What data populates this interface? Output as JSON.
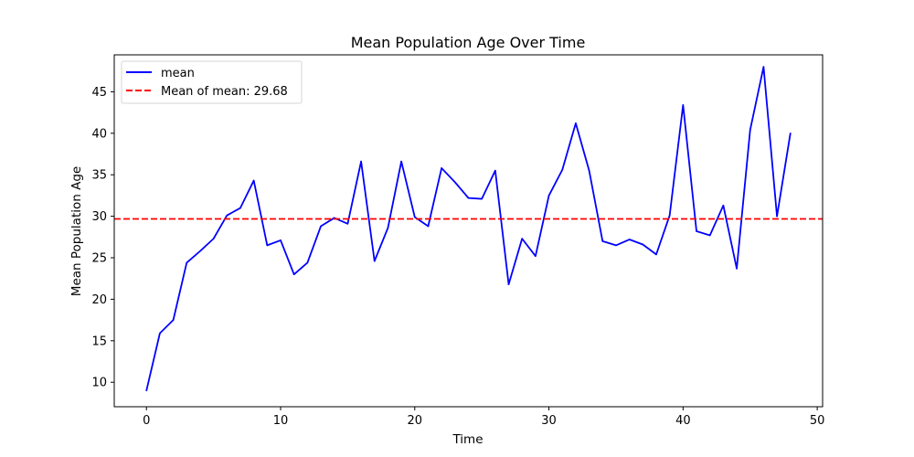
{
  "chart_data": {
    "type": "line",
    "title": "Mean Population Age Over Time",
    "xlabel": "Time",
    "ylabel": "Mean Population Age",
    "xlim": [
      -2.4,
      50.4
    ],
    "ylim": [
      7.05,
      49.45
    ],
    "x_ticks": [
      0,
      10,
      20,
      30,
      40,
      50
    ],
    "y_ticks": [
      10,
      15,
      20,
      25,
      30,
      35,
      40,
      45
    ],
    "grid": false,
    "legend_position": "top-left",
    "series": [
      {
        "name": "mean",
        "color": "#0000ff",
        "style": "solid",
        "x": [
          0,
          1,
          2,
          3,
          4,
          5,
          6,
          7,
          8,
          9,
          10,
          11,
          12,
          13,
          14,
          15,
          16,
          17,
          18,
          19,
          20,
          21,
          22,
          23,
          24,
          25,
          26,
          27,
          28,
          29,
          30,
          31,
          32,
          33,
          34,
          35,
          36,
          37,
          38,
          39,
          40,
          41,
          42,
          43,
          44,
          45,
          46,
          47,
          48
        ],
        "values": [
          9.0,
          15.9,
          17.5,
          24.4,
          25.8,
          27.3,
          30.1,
          31.0,
          34.3,
          26.5,
          27.1,
          23.0,
          24.4,
          28.8,
          29.8,
          29.1,
          36.6,
          24.6,
          28.6,
          36.6,
          29.9,
          28.8,
          35.8,
          34.1,
          32.2,
          32.1,
          35.5,
          21.8,
          27.3,
          25.2,
          32.5,
          35.6,
          41.2,
          35.5,
          27.0,
          26.5,
          27.2,
          26.6,
          25.4,
          30.1,
          43.4,
          28.2,
          27.7,
          31.3,
          23.7,
          40.4,
          48.0,
          30.0,
          40.0
        ]
      },
      {
        "name": "Mean of mean: 29.68",
        "color": "#ff0000",
        "style": "dashed",
        "value": 29.68
      }
    ]
  }
}
